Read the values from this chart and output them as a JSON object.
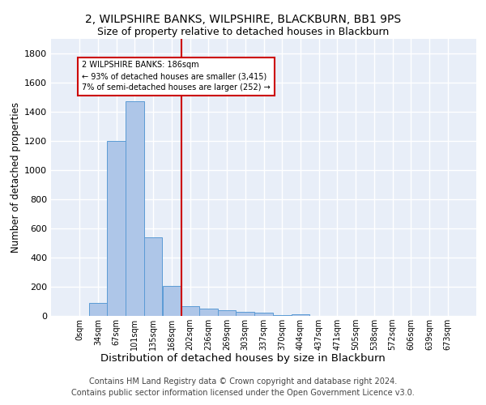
{
  "title1": "2, WILPSHIRE BANKS, WILPSHIRE, BLACKBURN, BB1 9PS",
  "title2": "Size of property relative to detached houses in Blackburn",
  "xlabel": "Distribution of detached houses by size in Blackburn",
  "ylabel": "Number of detached properties",
  "bar_labels": [
    "0sqm",
    "34sqm",
    "67sqm",
    "101sqm",
    "135sqm",
    "168sqm",
    "202sqm",
    "236sqm",
    "269sqm",
    "303sqm",
    "337sqm",
    "370sqm",
    "404sqm",
    "437sqm",
    "471sqm",
    "505sqm",
    "538sqm",
    "572sqm",
    "606sqm",
    "639sqm",
    "673sqm"
  ],
  "bar_values": [
    0,
    90,
    1200,
    1470,
    540,
    205,
    65,
    50,
    40,
    25,
    20,
    5,
    10,
    2,
    0,
    0,
    0,
    0,
    0,
    0,
    0
  ],
  "bar_color": "#aec6e8",
  "bar_edge_color": "#5b9bd5",
  "vline_color": "#cc0000",
  "annotation_text": "2 WILPSHIRE BANKS: 186sqm\n← 93% of detached houses are smaller (3,415)\n7% of semi-detached houses are larger (252) →",
  "annotation_box_color": "white",
  "annotation_box_edge_color": "#cc0000",
  "ylim": [
    0,
    1900
  ],
  "yticks": [
    0,
    200,
    400,
    600,
    800,
    1000,
    1200,
    1400,
    1600,
    1800
  ],
  "background_color": "#e8eef8",
  "grid_color": "white",
  "footer_text": "Contains HM Land Registry data © Crown copyright and database right 2024.\nContains public sector information licensed under the Open Government Licence v3.0.",
  "title1_fontsize": 10,
  "title2_fontsize": 9,
  "xlabel_fontsize": 9.5,
  "ylabel_fontsize": 8.5,
  "footer_fontsize": 7,
  "tick_fontsize": 7,
  "ytick_fontsize": 8
}
